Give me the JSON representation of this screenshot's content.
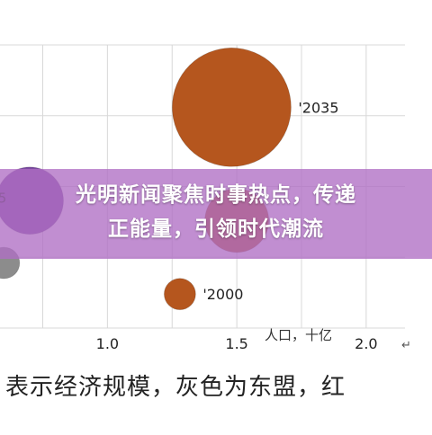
{
  "chart_data": {
    "type": "scatter",
    "x_ticks": [
      "1.0",
      "1.5",
      "2.0"
    ],
    "xlabel": "人口，十亿",
    "xlim": [
      0.55,
      2.15
    ],
    "ylim": [
      0,
      1
    ],
    "grid": true,
    "series": [
      {
        "label": "'2035",
        "x": 1.48,
        "y": 0.78,
        "size": 1.0,
        "color": "#b5561e"
      },
      {
        "label": "",
        "x": 1.5,
        "y": 0.38,
        "size": 0.29,
        "color": "#b5561e"
      },
      {
        "label": "'2000",
        "x": 1.28,
        "y": 0.12,
        "size": 0.07,
        "color": "#b5561e"
      },
      {
        "label": "5",
        "x": 0.7,
        "y": 0.45,
        "size": 0.32,
        "color": "#7b4aa1"
      },
      {
        "label": "",
        "x": 0.6,
        "y": 0.23,
        "size": 0.07,
        "color": "#8c8c8c"
      }
    ]
  },
  "banner": {
    "line1": "光明新闻聚焦时事热点，传递",
    "line2": "正能量，引领时代潮流"
  },
  "caption": {
    "text": "表示经济规模，灰色为东盟，红"
  },
  "colors": {
    "banner_bg": "#b06ec4",
    "bubble_orange": "#b5561e",
    "bubble_purple": "#7b4aa1",
    "bubble_gray": "#8c8c8c",
    "grid": "#d8d8d8"
  }
}
